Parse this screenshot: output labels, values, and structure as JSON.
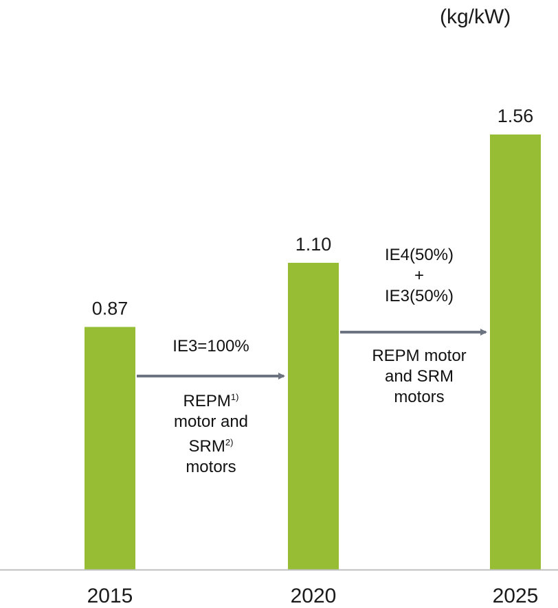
{
  "unit_label": "(kg/kW)",
  "colors": {
    "bar": "#96bd33",
    "arrow": "#6b7480",
    "baseline": "#bfbfbf",
    "text": "#1a1a1a"
  },
  "chart_data": {
    "type": "bar",
    "categories": [
      "2015",
      "2020",
      "2025"
    ],
    "values": [
      0.87,
      1.1,
      1.56
    ],
    "data_labels": [
      "0.87",
      "1.10",
      "1.56"
    ],
    "ylim": [
      0,
      1.56
    ],
    "grid": false,
    "legend": "none",
    "annotations": [
      {
        "from": "2015",
        "to": "2020",
        "label_above": "IE3=100%",
        "label_below": [
          "REPM",
          "1)",
          "motor and",
          "SRM",
          "2)",
          "motors"
        ]
      },
      {
        "from": "2020",
        "to": "2025",
        "label_above": [
          "IE4(50%)",
          "+",
          "IE3(50%)"
        ],
        "label_below": [
          "REPM motor",
          "and SRM",
          "motors"
        ]
      }
    ]
  }
}
